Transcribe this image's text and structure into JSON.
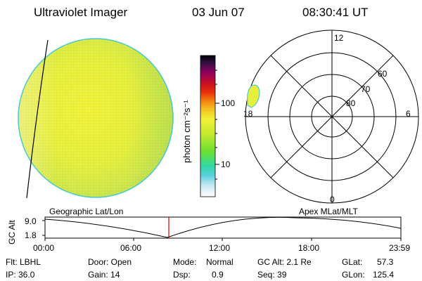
{
  "header": {
    "title": "Ultraviolet Imager",
    "date": "03 Jun 07",
    "time": "08:30:41 UT"
  },
  "colorbar": {
    "unit": "photon cm⁻²s⁻¹",
    "ticks": [
      "100",
      "10"
    ]
  },
  "polar": {
    "mlt_labels": {
      "top": "12",
      "left": "18",
      "right": "6",
      "bottom": "0"
    },
    "lat_labels": [
      "60",
      "70",
      "80"
    ]
  },
  "timeline": {
    "left_label": "Geographic Lat/Lon",
    "right_label": "Apex MLat/MLT",
    "axis_label": "GC Alt",
    "y_ticks": [
      "9.0",
      "1.8"
    ],
    "x_ticks": [
      "00:00",
      "06:00",
      "12:00",
      "18:00",
      "23:59"
    ],
    "marker_color": "#cc0000"
  },
  "status": {
    "row1": {
      "flt": "Flt: LBHL",
      "door": "Door: Open",
      "mode_label": "Mode:",
      "mode_value": "Normal",
      "gcalt": "GC Alt: 2.1 Re",
      "glat_label": "GLat:",
      "glat_value": "57.3"
    },
    "row2": {
      "ip": "IP: 36.0",
      "gain": "Gain: 14",
      "dsp_label": "Dsp:",
      "dsp_value": "0.9",
      "seq": "Seq: 39",
      "glon_label": "GLon:",
      "glon_value": "125.4"
    }
  }
}
